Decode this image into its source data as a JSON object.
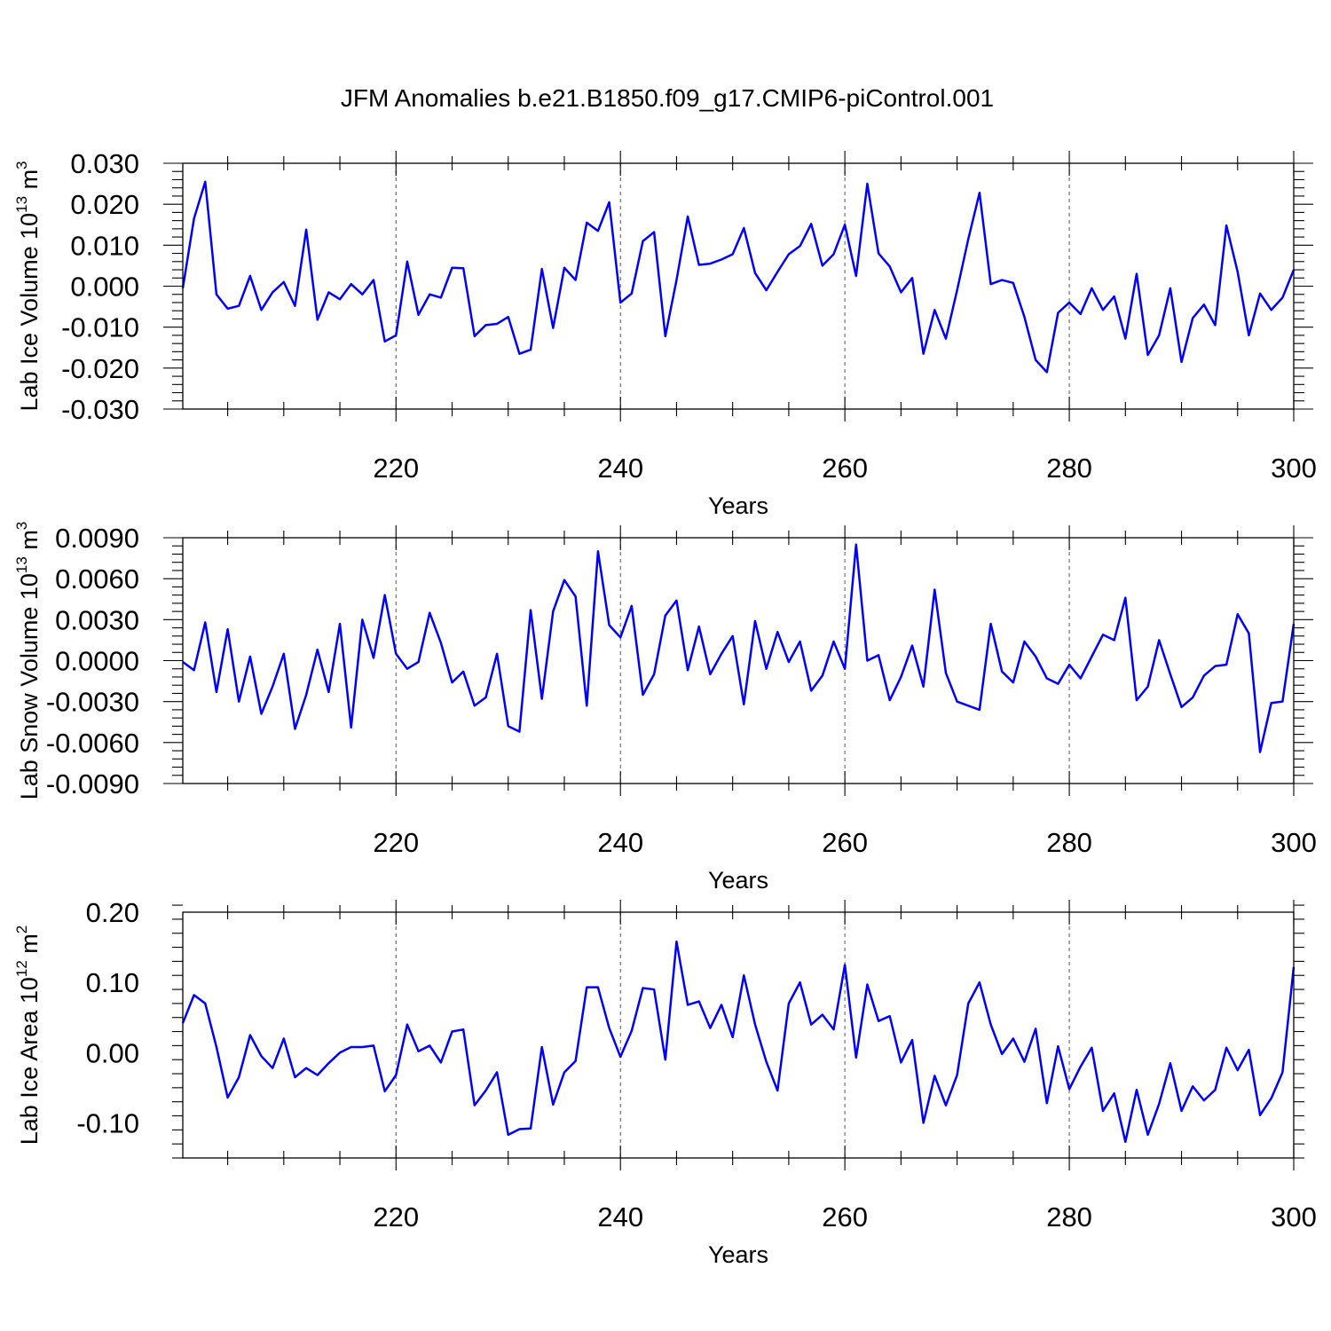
{
  "title": "JFM Anomalies b.e21.B1850.f09_g17.CMIP6-piControl.001",
  "colors": {
    "line": "#0000ff",
    "grid": "#666666",
    "axis": "#000000"
  },
  "chart_data": [
    {
      "type": "line",
      "ylabel_main": "Lab Ice Volume 10",
      "ylabel_exp": "13",
      "ylabel_unit": " m",
      "ylabel_unit_exp": "3",
      "xlabel": "Years",
      "xlim": [
        201,
        300
      ],
      "ylim": [
        -0.03,
        0.03
      ],
      "x_ticks": [
        220,
        240,
        260,
        280,
        300
      ],
      "x_tick_labels": [
        "220",
        "240",
        "260",
        "280",
        "300"
      ],
      "y_ticks": [
        -0.03,
        -0.02,
        -0.01,
        0.0,
        0.01,
        0.02,
        0.03
      ],
      "y_tick_labels": [
        "-0.030",
        "-0.020",
        "-0.010",
        "0.000",
        "0.010",
        "0.020",
        "0.030"
      ],
      "grid_x": [
        220,
        240,
        260,
        280
      ],
      "x_start": 201,
      "series": [
        {
          "name": "Lab Ice Volume",
          "values": [
            -0.0005,
            0.0165,
            0.0255,
            -0.002,
            -0.0055,
            -0.0048,
            0.0025,
            -0.0058,
            -0.0015,
            0.001,
            -0.0048,
            0.0138,
            -0.0082,
            -0.0015,
            -0.0032,
            0.0005,
            -0.002,
            0.0015,
            -0.0135,
            -0.012,
            0.006,
            -0.007,
            -0.002,
            -0.0028,
            0.0045,
            0.0044,
            -0.0122,
            -0.0095,
            -0.0092,
            -0.0075,
            -0.0165,
            -0.0155,
            0.0042,
            -0.0102,
            0.0045,
            0.0015,
            0.0155,
            0.0135,
            0.0205,
            -0.004,
            -0.0018,
            0.011,
            0.0132,
            -0.0122,
            0.0015,
            0.017,
            0.0052,
            0.0055,
            0.0065,
            0.0078,
            0.0142,
            0.0032,
            -0.001,
            0.0035,
            0.0078,
            0.0098,
            0.0152,
            0.005,
            0.0078,
            0.015,
            0.0025,
            0.025,
            0.008,
            0.0048,
            -0.0015,
            0.002,
            -0.0165,
            -0.0058,
            -0.0128,
            -0.001,
            0.0115,
            0.0228,
            0.0005,
            0.0015,
            0.0008,
            -0.0075,
            -0.018,
            -0.021,
            -0.0065,
            -0.004,
            -0.0068,
            -0.0005,
            -0.0058,
            -0.0025,
            -0.0128,
            0.003,
            -0.0168,
            -0.012,
            -0.0005,
            -0.0185,
            -0.0078,
            -0.0045,
            -0.0095,
            0.0148,
            0.0035,
            -0.012,
            -0.0018,
            -0.0058,
            -0.0028,
            0.004
          ]
        }
      ]
    },
    {
      "type": "line",
      "ylabel_main": "Lab Snow Volume 10",
      "ylabel_exp": "13",
      "ylabel_unit": " m",
      "ylabel_unit_exp": "3",
      "xlabel": "Years",
      "xlim": [
        201,
        300
      ],
      "ylim": [
        -0.009,
        0.009
      ],
      "x_ticks": [
        220,
        240,
        260,
        280,
        300
      ],
      "x_tick_labels": [
        "220",
        "240",
        "260",
        "280",
        "300"
      ],
      "y_ticks": [
        -0.009,
        -0.006,
        -0.003,
        0.0,
        0.003,
        0.006,
        0.009
      ],
      "y_tick_labels": [
        "-0.0090",
        "-0.0060",
        "-0.0030",
        "0.0000",
        "0.0030",
        "0.0060",
        "0.0090"
      ],
      "grid_x": [
        220,
        240,
        260,
        280
      ],
      "x_start": 201,
      "series": [
        {
          "name": "Lab Snow Volume",
          "values": [
            -0.0001,
            -0.0007,
            0.0028,
            -0.0023,
            0.0023,
            -0.003,
            0.0003,
            -0.0039,
            -0.0019,
            0.0005,
            -0.005,
            -0.0025,
            0.0008,
            -0.0023,
            0.0027,
            -0.0049,
            0.003,
            0.0002,
            0.0048,
            0.0005,
            -0.0006,
            -0.0001,
            0.0035,
            0.0013,
            -0.0016,
            -0.0008,
            -0.0033,
            -0.0027,
            0.0005,
            -0.0048,
            -0.0052,
            0.0037,
            -0.0028,
            0.0036,
            0.0059,
            0.0047,
            -0.0033,
            0.008,
            0.0026,
            0.0017,
            0.004,
            -0.0025,
            -0.001,
            0.0033,
            0.0044,
            -0.0007,
            0.0025,
            -0.001,
            0.0005,
            0.0018,
            -0.0032,
            0.0029,
            -0.0006,
            0.0021,
            -0.0001,
            0.0014,
            -0.0022,
            -0.0011,
            0.0014,
            -0.0006,
            0.0085,
            0.0,
            0.0004,
            -0.0029,
            -0.0012,
            0.0011,
            -0.0019,
            0.0052,
            -0.0009,
            -0.003,
            -0.0033,
            -0.0036,
            0.0027,
            -0.0008,
            -0.0016,
            0.0014,
            0.0003,
            -0.0013,
            -0.0017,
            -0.0003,
            -0.0013,
            0.0003,
            0.0019,
            0.0015,
            0.0046,
            -0.0029,
            -0.0019,
            0.0015,
            -0.001,
            -0.0034,
            -0.0027,
            -0.0011,
            -0.0004,
            -0.0003,
            0.0034,
            0.002,
            -0.0067,
            -0.0031,
            -0.003,
            0.0027
          ]
        }
      ]
    },
    {
      "type": "line",
      "ylabel_main": "Lab Ice Area 10",
      "ylabel_exp": "12",
      "ylabel_unit": " m",
      "ylabel_unit_exp": "2",
      "xlabel": "Years",
      "xlim": [
        201,
        300
      ],
      "ylim": [
        -0.15,
        0.2
      ],
      "x_ticks": [
        220,
        240,
        260,
        280,
        300
      ],
      "x_tick_labels": [
        "220",
        "240",
        "260",
        "280",
        "300"
      ],
      "y_ticks": [
        -0.1,
        0.0,
        0.1,
        0.2
      ],
      "y_tick_labels": [
        "-0.10",
        "0.00",
        "0.10",
        "0.20"
      ],
      "grid_x": [
        220,
        240,
        260,
        280
      ],
      "x_start": 201,
      "series": [
        {
          "name": "Lab Ice Area",
          "values": [
            0.042,
            0.082,
            0.07,
            0.008,
            -0.064,
            -0.035,
            0.025,
            -0.005,
            -0.022,
            0.02,
            -0.035,
            -0.022,
            -0.032,
            -0.015,
            0.0,
            0.008,
            0.008,
            0.01,
            -0.055,
            -0.032,
            0.04,
            0.002,
            0.01,
            -0.014,
            0.03,
            0.033,
            -0.075,
            -0.054,
            -0.028,
            -0.117,
            -0.109,
            -0.108,
            0.008,
            -0.074,
            -0.028,
            -0.012,
            0.093,
            0.093,
            0.035,
            -0.006,
            0.031,
            0.092,
            0.09,
            -0.01,
            0.158,
            0.068,
            0.073,
            0.035,
            0.068,
            0.022,
            0.11,
            0.04,
            -0.013,
            -0.054,
            0.07,
            0.1,
            0.04,
            0.054,
            0.033,
            0.125,
            -0.007,
            0.097,
            0.045,
            0.052,
            -0.014,
            0.018,
            -0.1,
            -0.033,
            -0.075,
            -0.032,
            0.07,
            0.1,
            0.04,
            -0.002,
            0.02,
            -0.013,
            0.034,
            -0.072,
            0.009,
            -0.052,
            -0.02,
            0.007,
            -0.083,
            -0.058,
            -0.127,
            -0.053,
            -0.117,
            -0.073,
            -0.015,
            -0.083,
            -0.048,
            -0.068,
            -0.053,
            0.007,
            -0.025,
            0.004,
            -0.089,
            -0.065,
            -0.028,
            0.122
          ]
        }
      ]
    }
  ]
}
